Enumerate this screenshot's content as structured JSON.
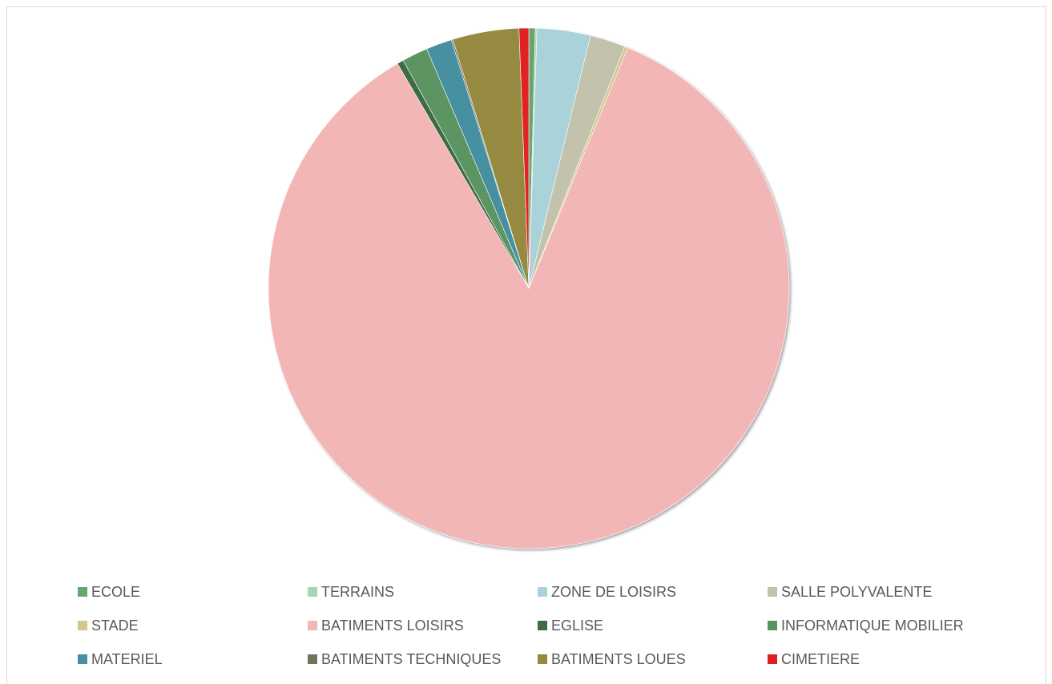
{
  "chart_data": {
    "type": "pie",
    "title": "",
    "slices": [
      {
        "label": "ECOLE",
        "value": 0.4,
        "color": "#6aa56e"
      },
      {
        "label": "TERRAINS",
        "value": 0.1,
        "color": "#a8d5b5"
      },
      {
        "label": "ZONE DE LOISIRS",
        "value": 3.3,
        "color": "#a9d2d9"
      },
      {
        "label": "SALLE POLYVALENTE",
        "value": 2.2,
        "color": "#c3c3ad"
      },
      {
        "label": "STADE",
        "value": 0.2,
        "color": "#d3c78c"
      },
      {
        "label": "BATIMENTS LOISIRS",
        "value": 85.2,
        "color": "#f3b6b6"
      },
      {
        "label": "EGLISE",
        "value": 0.4,
        "color": "#3f6b45"
      },
      {
        "label": "INFORMATIQUE MOBILIER",
        "value": 1.6,
        "color": "#5b9462"
      },
      {
        "label": "MATERIEL",
        "value": 1.6,
        "color": "#4690a2"
      },
      {
        "label": "BATIMENTS TECHNIQUES",
        "value": 0.1,
        "color": "#76735c"
      },
      {
        "label": "BATIMENTS LOUES",
        "value": 4.1,
        "color": "#958a3f"
      },
      {
        "label": "CIMETIERE",
        "value": 0.6,
        "color": "#e02020"
      }
    ],
    "legend_position": "bottom"
  }
}
